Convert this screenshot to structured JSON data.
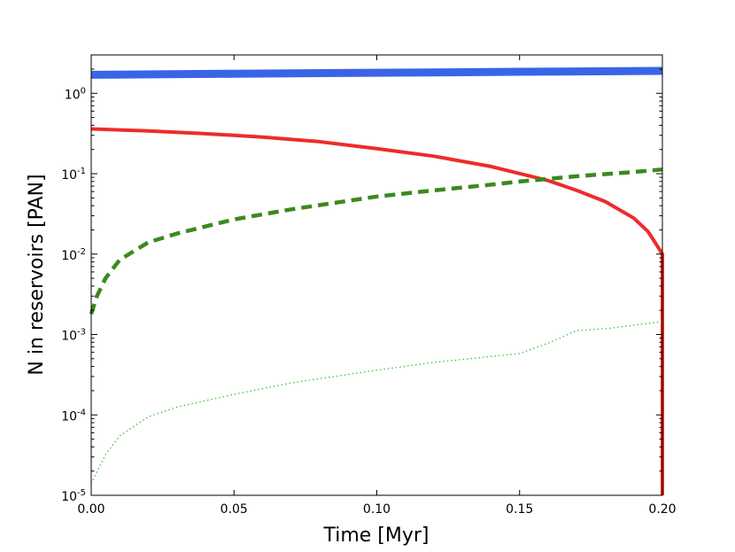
{
  "chart_data": {
    "type": "line",
    "title": "",
    "xlabel": "Time [Myr]",
    "ylabel": "N in reservoirs [PAN]",
    "xlim": [
      0.0,
      0.2
    ],
    "ylim": [
      1e-05,
      3.0
    ],
    "yscale": "log",
    "grid": false,
    "x_ticks": [
      {
        "value": 0.0,
        "label": "0.00"
      },
      {
        "value": 0.05,
        "label": "0.05"
      },
      {
        "value": 0.1,
        "label": "0.10"
      },
      {
        "value": 0.15,
        "label": "0.15"
      },
      {
        "value": 0.2,
        "label": "0.20"
      }
    ],
    "y_ticks": [
      {
        "value": 1e-05,
        "base": "10",
        "exp": "-5"
      },
      {
        "value": 0.0001,
        "base": "10",
        "exp": "-4"
      },
      {
        "value": 0.001,
        "base": "10",
        "exp": "-3"
      },
      {
        "value": 0.01,
        "base": "10",
        "exp": "-2"
      },
      {
        "value": 0.1,
        "base": "10",
        "exp": "-1"
      },
      {
        "value": 1,
        "base": "10",
        "exp": "0"
      }
    ],
    "series": [
      {
        "color": "#3a64e8",
        "style": "solid-thick",
        "x": [
          0.0,
          0.05,
          0.1,
          0.15,
          0.2
        ],
        "y": [
          1.7,
          1.75,
          1.8,
          1.85,
          1.9
        ]
      },
      {
        "color": "#ee2b2b",
        "style": "solid",
        "x": [
          0.0,
          0.02,
          0.04,
          0.06,
          0.08,
          0.1,
          0.12,
          0.14,
          0.16,
          0.17,
          0.18,
          0.19,
          0.195,
          0.198,
          0.2,
          0.2
        ],
        "y": [
          0.36,
          0.34,
          0.315,
          0.285,
          0.25,
          0.205,
          0.165,
          0.123,
          0.082,
          0.062,
          0.045,
          0.028,
          0.019,
          0.013,
          0.01,
          1e-05
        ]
      },
      {
        "color": "#3a8a1e",
        "style": "dashed",
        "x": [
          0.0,
          0.002,
          0.005,
          0.01,
          0.02,
          0.03,
          0.05,
          0.07,
          0.1,
          0.12,
          0.14,
          0.15,
          0.17,
          0.19,
          0.2
        ],
        "y": [
          0.0018,
          0.003,
          0.005,
          0.0085,
          0.014,
          0.018,
          0.027,
          0.036,
          0.052,
          0.062,
          0.073,
          0.08,
          0.093,
          0.105,
          0.113
        ]
      },
      {
        "color": "#33bb33",
        "style": "dotted",
        "x": [
          0.0,
          0.005,
          0.01,
          0.02,
          0.03,
          0.05,
          0.07,
          0.1,
          0.12,
          0.15,
          0.16,
          0.17,
          0.18,
          0.2
        ],
        "y": [
          1.4e-05,
          3.2e-05,
          5.5e-05,
          9.5e-05,
          0.000125,
          0.00018,
          0.00025,
          0.00036,
          0.00045,
          0.00058,
          0.00078,
          0.00112,
          0.00118,
          0.00145
        ]
      }
    ]
  }
}
